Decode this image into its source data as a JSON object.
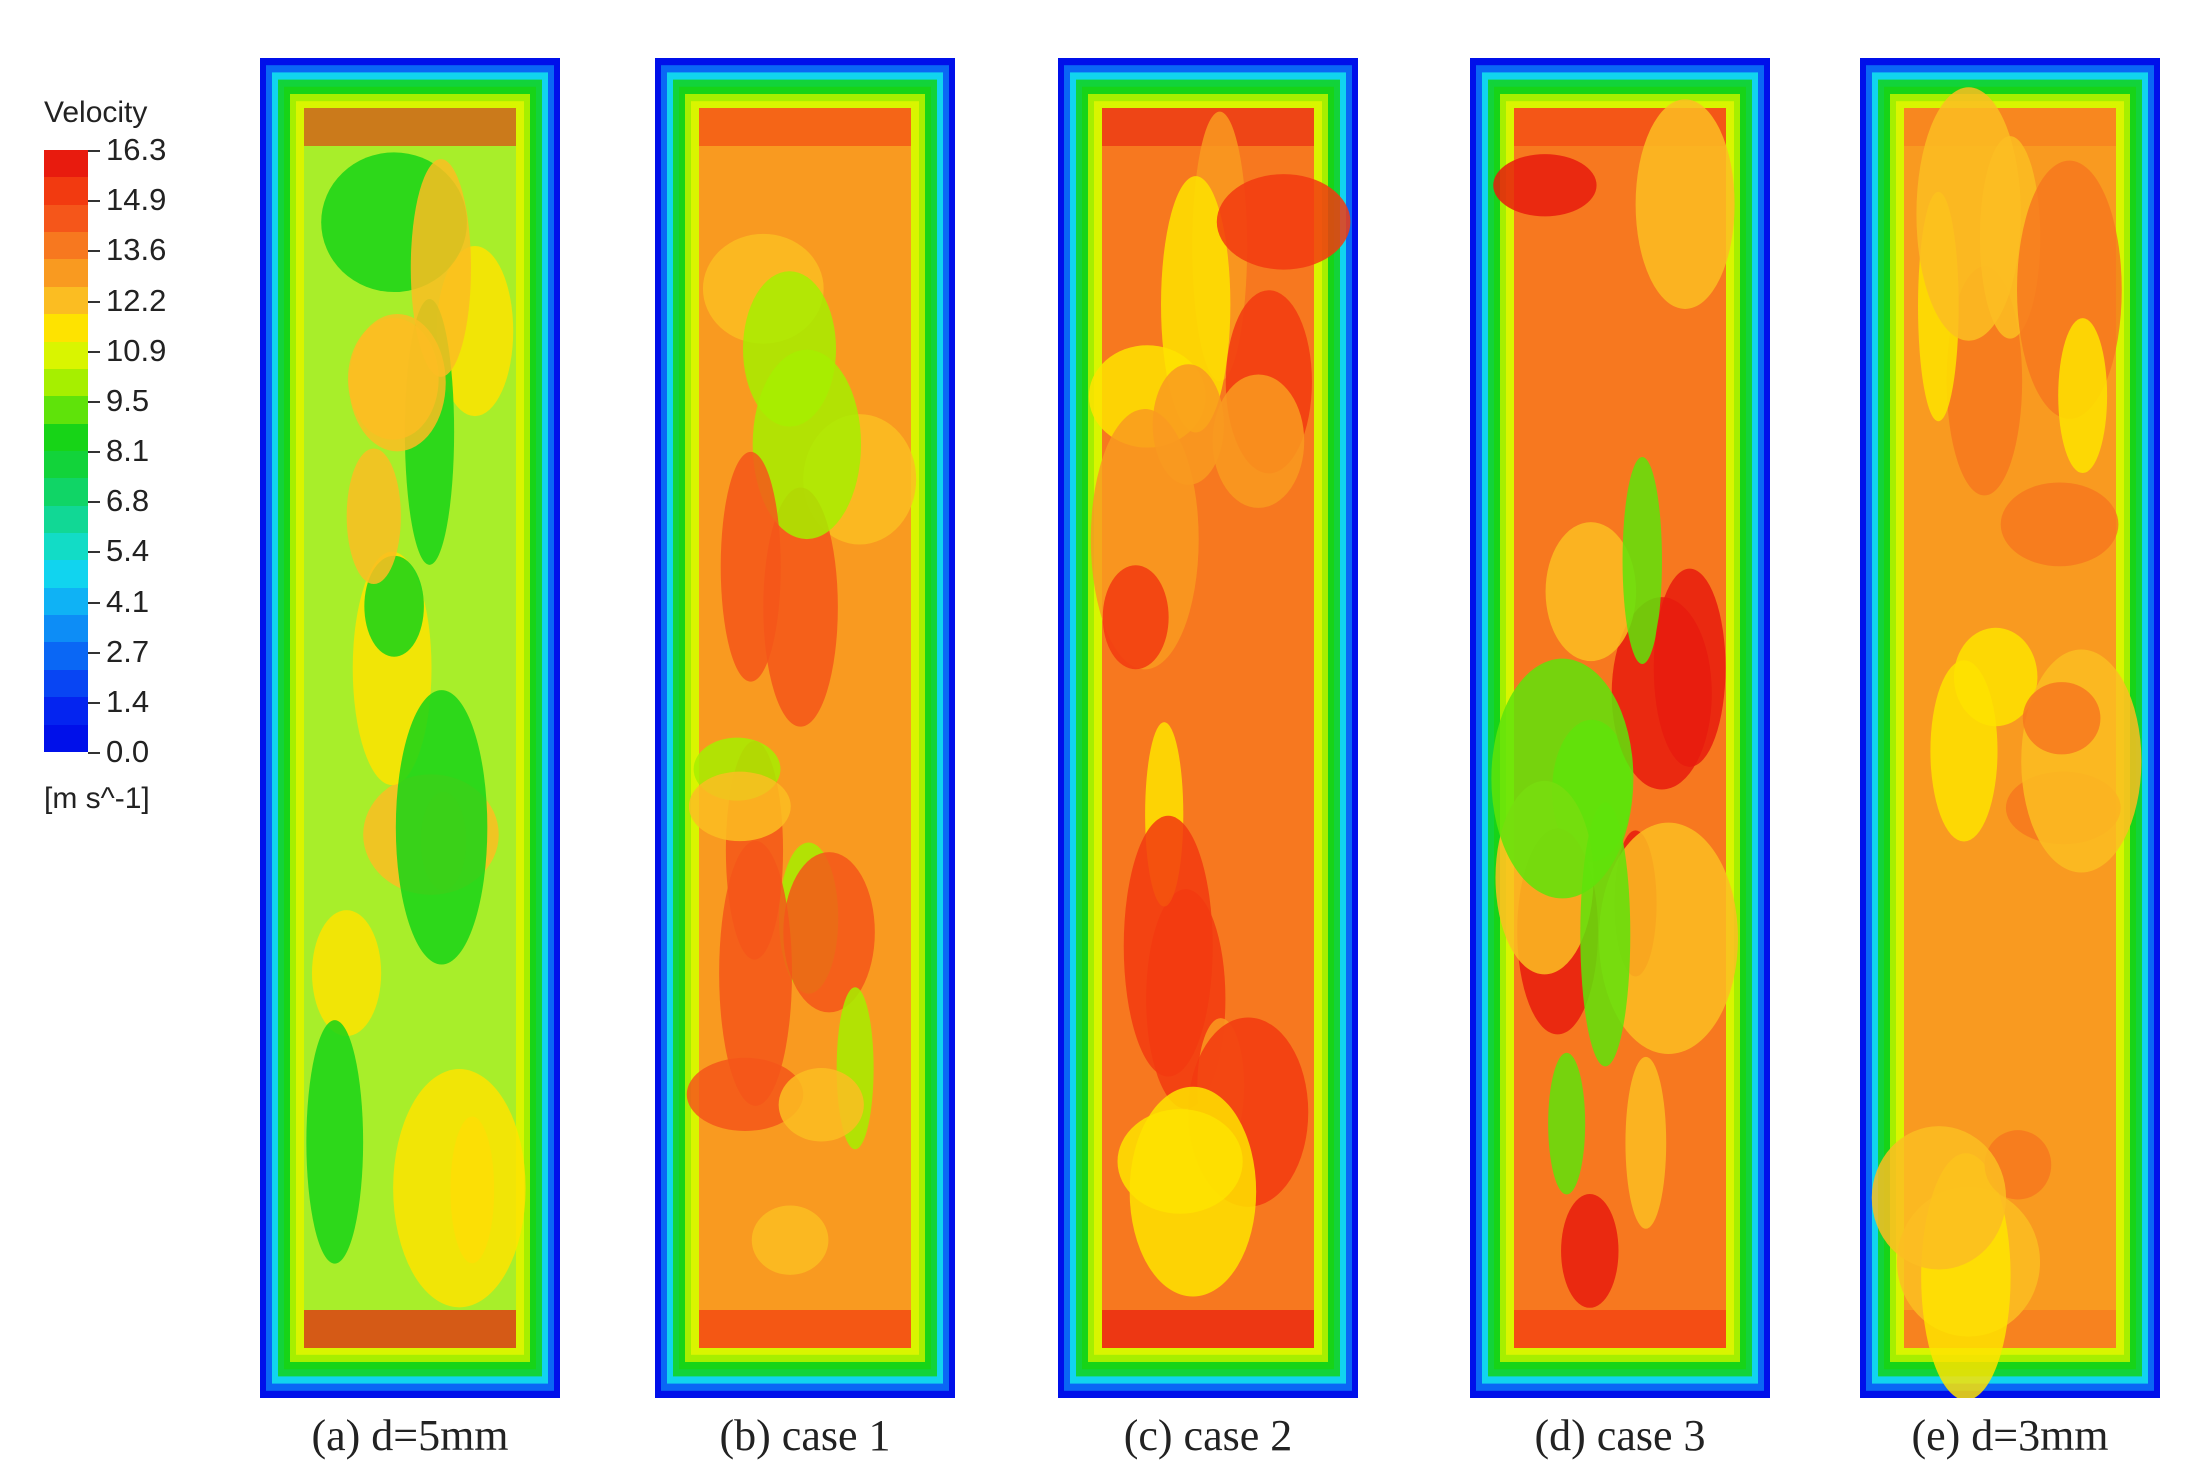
{
  "legend": {
    "title": "Velocity",
    "unit": "[m s^-1]",
    "ticks": [
      "16.3",
      "14.9",
      "13.6",
      "12.2",
      "10.9",
      "9.5",
      "8.1",
      "6.8",
      "5.4",
      "4.1",
      "2.7",
      "1.4",
      "0.0"
    ],
    "colors_top_to_bottom": [
      "#e81b0e",
      "#f23a10",
      "#f5561a",
      "#f7781f",
      "#f99a20",
      "#fbbd22",
      "#fee300",
      "#d9f500",
      "#a6ef00",
      "#5fe30a",
      "#17d417",
      "#12d33a",
      "#10d566",
      "#11d895",
      "#12dcc6",
      "#11d4ef",
      "#0fb2f5",
      "#0d8df6",
      "#0a67f5",
      "#0845f3",
      "#0424f0",
      "#0010ea"
    ]
  },
  "panels": [
    {
      "caption": "(a) d=5mm",
      "scheme": "low"
    },
    {
      "caption": "(b) case 1",
      "scheme": "mid"
    },
    {
      "caption": "(c) case 2",
      "scheme": "high"
    },
    {
      "caption": "(d) case 3",
      "scheme": "high2"
    },
    {
      "caption": "(e) d=3mm",
      "scheme": "uniform"
    }
  ]
}
